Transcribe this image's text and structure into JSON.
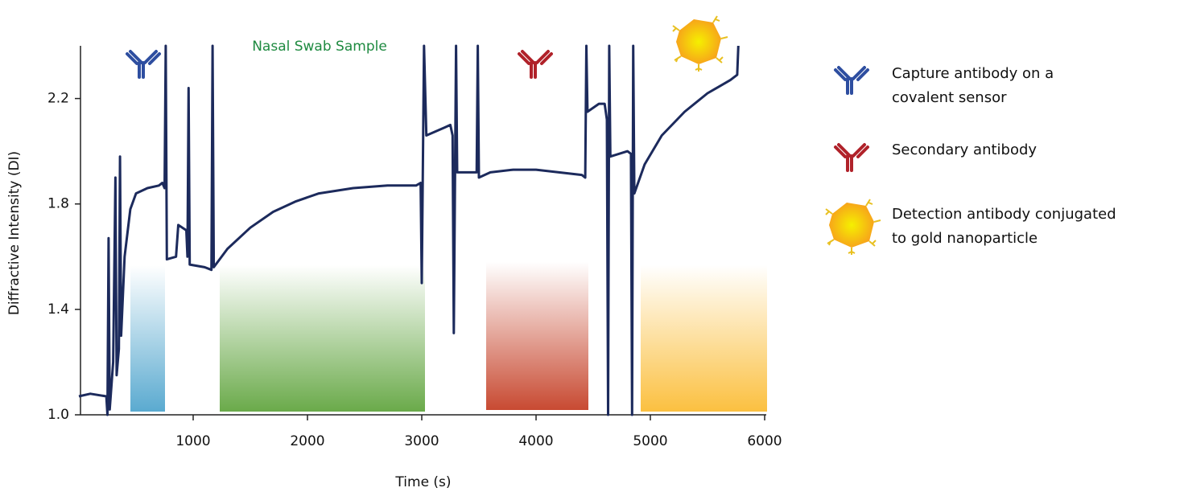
{
  "chart_data": {
    "type": "line",
    "xlabel": "Time (s)",
    "ylabel": "Diffractive Intensity (DI)",
    "annotation": "Nasal Swab Sample",
    "xlim": [
      0,
      6000
    ],
    "ylim": [
      1.0,
      2.4
    ],
    "xticks": [
      1000,
      2000,
      3000,
      4000,
      5000,
      6000
    ],
    "yticks": [
      {
        "value": 1,
        "label": "1.0"
      },
      1.4,
      1.8,
      2.2
    ],
    "series": [
      {
        "color": "#1c2a5c",
        "x": [
          0,
          100,
          240,
          250,
          260,
          270,
          300,
          320,
          330,
          350,
          360,
          370,
          400,
          450,
          500,
          600,
          700,
          730,
          750,
          760,
          770,
          850,
          870,
          940,
          950,
          960,
          970,
          1100,
          1160,
          1170,
          1180,
          1300,
          1500,
          1700,
          1900,
          2100,
          2400,
          2700,
          2950,
          2990,
          3000,
          3020,
          3040,
          3200,
          3250,
          3270,
          3280,
          3300,
          3310,
          3480,
          3490,
          3500,
          3600,
          3800,
          4000,
          4200,
          4400,
          4430,
          4440,
          4450,
          4550,
          4600,
          4620,
          4630,
          4640,
          4650,
          4800,
          4830,
          4840,
          4850,
          4860,
          4950,
          5100,
          5300,
          5500,
          5700,
          5760,
          5770
        ],
        "values": [
          1.07,
          1.08,
          1.07,
          1.0,
          1.67,
          1.02,
          1.2,
          1.9,
          1.15,
          1.25,
          1.98,
          1.3,
          1.6,
          1.78,
          1.84,
          1.86,
          1.87,
          1.88,
          1.86,
          2.4,
          1.59,
          1.6,
          1.72,
          1.7,
          1.6,
          2.24,
          1.57,
          1.56,
          1.55,
          2.4,
          1.56,
          1.63,
          1.71,
          1.77,
          1.81,
          1.84,
          1.86,
          1.87,
          1.87,
          1.88,
          1.5,
          2.4,
          2.06,
          2.09,
          2.1,
          2.06,
          1.31,
          2.4,
          1.92,
          1.92,
          2.4,
          1.9,
          1.92,
          1.93,
          1.93,
          1.92,
          1.91,
          1.9,
          2.4,
          2.15,
          2.18,
          2.18,
          2.12,
          1.0,
          2.4,
          1.98,
          2.0,
          1.99,
          1.0,
          2.4,
          1.84,
          1.95,
          2.06,
          2.15,
          2.22,
          2.27,
          2.29,
          2.4
        ]
      }
    ],
    "legend": [
      {
        "lines": [
          "Capture antibody on a",
          "covalent sensor"
        ]
      },
      {
        "lines": [
          "Secondary antibody"
        ]
      },
      {
        "lines": [
          "Detection antibody conjugated",
          "to gold nanoparticle"
        ]
      }
    ]
  }
}
